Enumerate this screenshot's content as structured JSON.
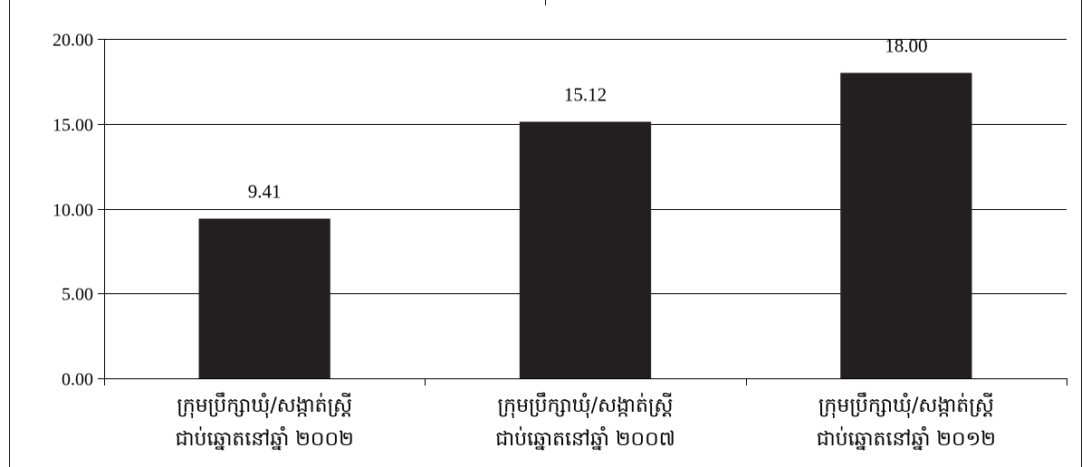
{
  "chart_data": {
    "type": "bar",
    "categories": [
      [
        "ក្រុមប្រឹក្សាឃុំ/សង្កាត់ស្ត្រី",
        "ជាប់ឆ្នោតនៅឆ្នាំ ២០០២"
      ],
      [
        "ក្រុមប្រឹក្សាឃុំ/សង្កាត់ស្ត្រី",
        "ជាប់ឆ្នោតនៅឆ្នាំ ២០០៧"
      ],
      [
        "ក្រុមប្រឹក្សាឃុំ/សង្កាត់ស្ត្រី",
        "ជាប់ឆ្នោតនៅឆ្នាំ ២០១២"
      ]
    ],
    "values": [
      9.41,
      15.12,
      18.0
    ],
    "value_labels": [
      "9.41",
      "15.12",
      "18.00"
    ],
    "y_ticks": [
      "0.00",
      "5.00",
      "10.00",
      "15.00",
      "20.00"
    ],
    "ylim": [
      0,
      20
    ],
    "grid": true,
    "bar_color": "#231f20"
  }
}
